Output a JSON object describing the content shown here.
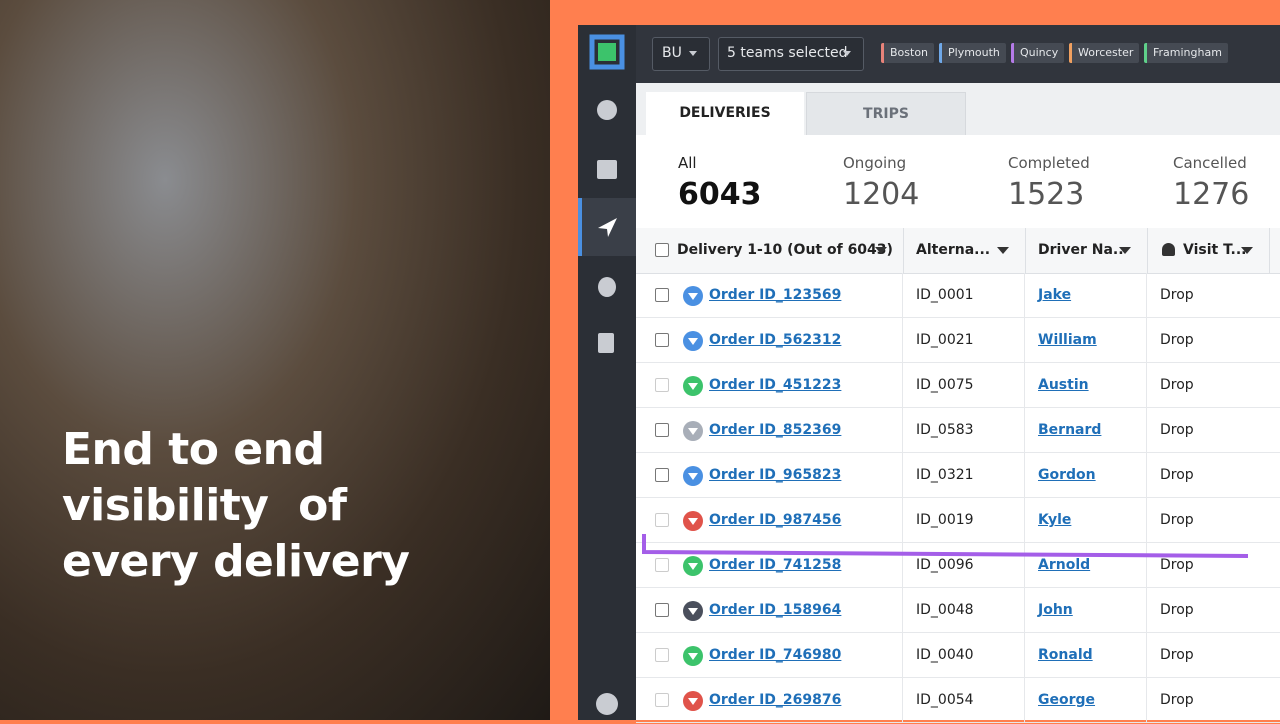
{
  "headline": [
    "End to end",
    "visibility  of",
    "every delivery"
  ],
  "toolbar": {
    "bu": "BU",
    "teams": "5 teams selected",
    "tags": [
      {
        "label": "Boston",
        "color": "#e8837a"
      },
      {
        "label": "Plymouth",
        "color": "#6fa8e8"
      },
      {
        "label": "Quincy",
        "color": "#b57be8"
      },
      {
        "label": "Worcester",
        "color": "#f0a060"
      },
      {
        "label": "Framingham",
        "color": "#5fd08a"
      }
    ]
  },
  "tabs": [
    "DELIVERIES",
    "TRIPS"
  ],
  "stats": [
    {
      "label": "All",
      "value": 6043
    },
    {
      "label": "Ongoing",
      "value": 1204
    },
    {
      "label": "Completed",
      "value": 1523
    },
    {
      "label": "Cancelled",
      "value": 1276
    }
  ],
  "table": {
    "columns": [
      "Delivery 1-10 (Out of 6043)",
      "Alterna...",
      "Driver Na..",
      "Visit T..."
    ],
    "rows": [
      {
        "status_color": "#4a90e2",
        "order": "Order ID_123569",
        "alt": "ID_0001",
        "driver": "Jake",
        "visit": "Drop"
      },
      {
        "status_color": "#4a90e2",
        "order": "Order ID_562312",
        "alt": "ID_0021",
        "driver": "William",
        "visit": "Drop"
      },
      {
        "status_color": "#3cc36b",
        "order": "Order ID_451223",
        "alt": "ID_0075",
        "driver": "Austin",
        "visit": "Drop"
      },
      {
        "status_color": "#a8aeb8",
        "order": "Order ID_852369",
        "alt": "ID_0583",
        "driver": "Bernard",
        "visit": "Drop"
      },
      {
        "status_color": "#4a90e2",
        "order": "Order ID_965823",
        "alt": "ID_0321",
        "driver": "Gordon",
        "visit": "Drop"
      },
      {
        "status_color": "#e0534a",
        "order": "Order ID_987456",
        "alt": "ID_0019",
        "driver": "Kyle",
        "visit": "Drop"
      },
      {
        "status_color": "#3cc36b",
        "order": "Order ID_741258",
        "alt": "ID_0096",
        "driver": "Arnold",
        "visit": "Drop"
      },
      {
        "status_color": "#4a4f5c",
        "order": "Order ID_158964",
        "alt": "ID_0048",
        "driver": "John",
        "visit": "Drop"
      },
      {
        "status_color": "#3cc36b",
        "order": "Order ID_746980",
        "alt": "ID_0040",
        "driver": "Ronald",
        "visit": "Drop"
      },
      {
        "status_color": "#e0534a",
        "order": "Order ID_269876",
        "alt": "ID_0054",
        "driver": "George",
        "visit": "Drop"
      }
    ]
  }
}
